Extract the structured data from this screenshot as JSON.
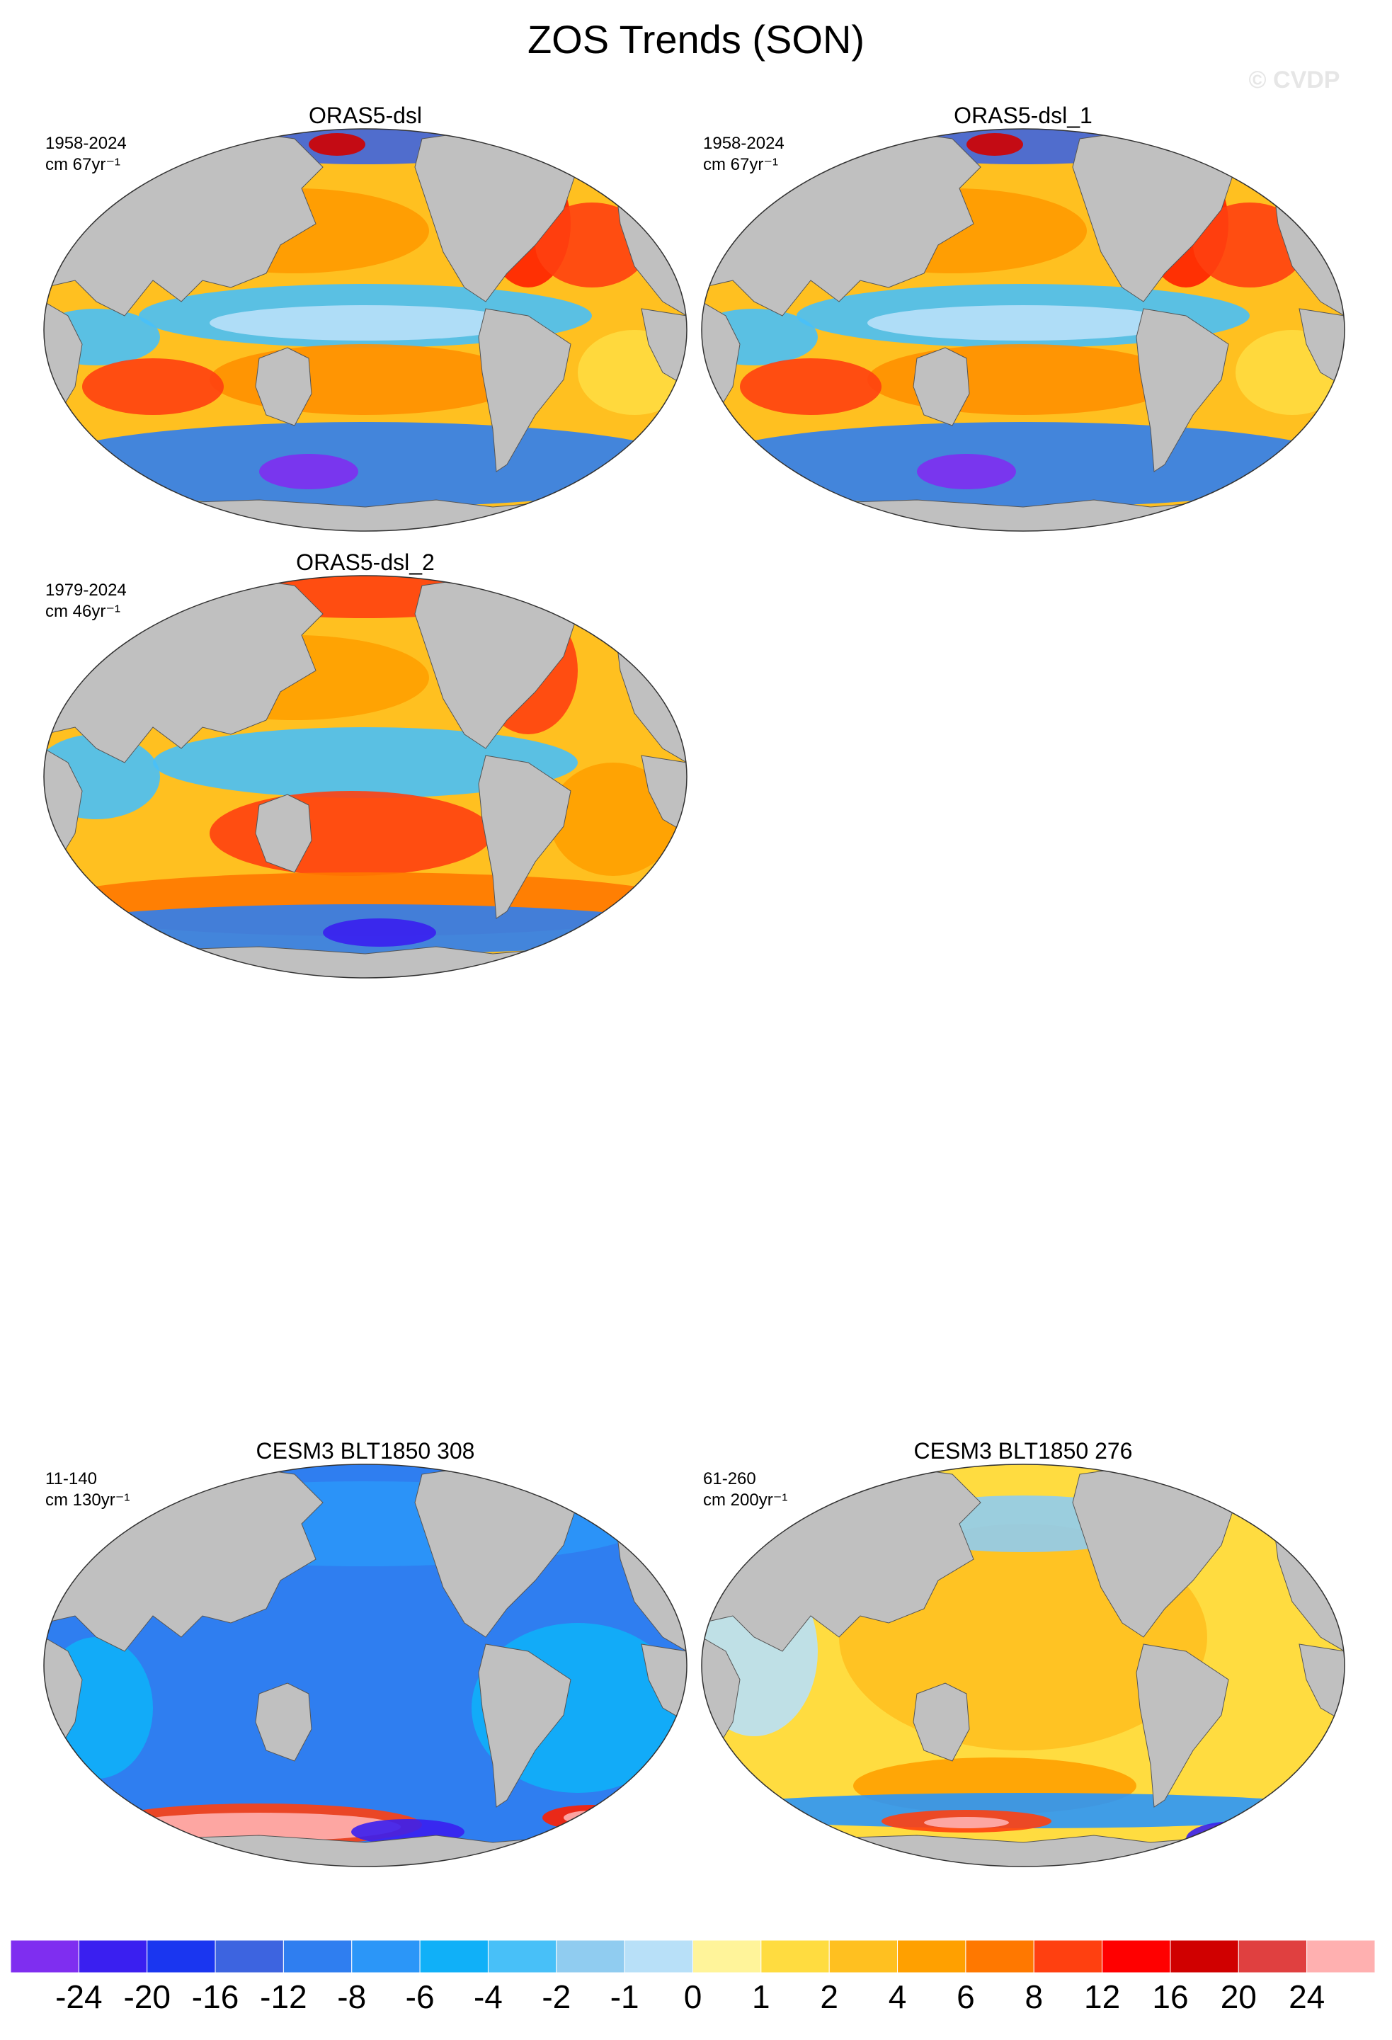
{
  "title": "ZOS Trends (SON)",
  "watermark": "© CVDP",
  "panels": [
    {
      "title": "ORAS5-dsl",
      "period": "1958-2024",
      "units": "cm 67yr⁻¹"
    },
    {
      "title": "ORAS5-dsl_1",
      "period": "1958-2024",
      "units": "cm 67yr⁻¹"
    },
    {
      "title": "ORAS5-dsl_2",
      "period": "1979-2024",
      "units": "cm 46yr⁻¹"
    },
    {
      "title": "CESM3 BLT1850 308",
      "period": "11-140",
      "units": "cm 130yr⁻¹"
    },
    {
      "title": "CESM3 BLT1850 276",
      "period": "61-260",
      "units": "cm 200yr⁻¹"
    }
  ],
  "colorbar": {
    "colors": [
      "#7f2ef0",
      "#3a1ff0",
      "#1a36f0",
      "#3d64e0",
      "#2f7ef0",
      "#2b96f8",
      "#10b0f8",
      "#48c0f8",
      "#90ccf0",
      "#b8e0f8",
      "#fff49a",
      "#ffdc40",
      "#ffc020",
      "#ffa000",
      "#ff7800",
      "#ff4010",
      "#ff0000",
      "#d00000",
      "#e04040",
      "#ffb0b0"
    ],
    "labels": [
      -24,
      -20,
      -16,
      -12,
      -8,
      -6,
      -4,
      -2,
      -1,
      0,
      1,
      2,
      4,
      6,
      8,
      12,
      16,
      20,
      24
    ]
  }
}
